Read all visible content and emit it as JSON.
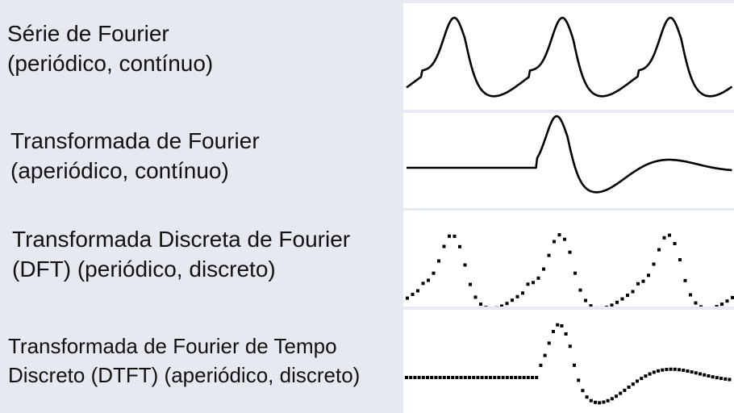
{
  "rows": [
    {
      "line1": "Série de Fourier",
      "line2": "(periódico, contínuo)",
      "signal": "continuous-periodic"
    },
    {
      "line1": "Transformada de Fourier",
      "line2": "(aperiódico, contínuo)",
      "signal": "continuous-aperiodic"
    },
    {
      "line1": "Transformada Discreta de Fourier",
      "line2": "(DFT) (periódico, discreto)",
      "signal": "discrete-periodic"
    },
    {
      "line1": "Transformada de Fourier de Tempo",
      "line2": "Discreto (DTFT) (aperiódico, discreto)",
      "signal": "discrete-aperiodic"
    }
  ],
  "colors": {
    "background": "#e6e9f0",
    "panel": "#ffffff",
    "signal": "#000000"
  }
}
